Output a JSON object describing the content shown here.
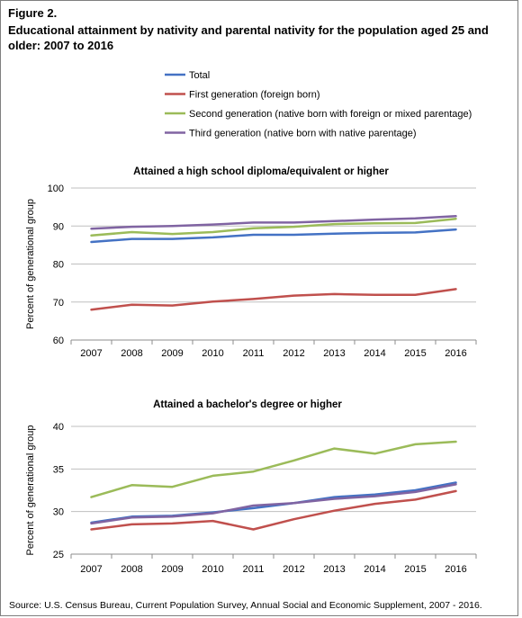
{
  "figure": {
    "label": "Figure 2.",
    "title": "Educational attainment by nativity and parental nativity for the population aged 25 and older: 2007 to 2016",
    "source": "Source: U.S. Census Bureau, Current Population Survey, Annual Social and Economic Supplement, 2007 - 2016."
  },
  "legend": [
    {
      "name": "Total",
      "color": "#4472c4"
    },
    {
      "name": "First generation (foreign born)",
      "color": "#c0504d"
    },
    {
      "name": "Second generation (native born with foreign or mixed parentage)",
      "color": "#9bbb59"
    },
    {
      "name": "Third generation (native born with native parentage)",
      "color": "#8064a2"
    }
  ],
  "chart_data": [
    {
      "type": "line",
      "title": "Attained a high school diploma/equivalent or higher",
      "ylabel": "Percent of generational group",
      "xlabel": "",
      "x": [
        "2007",
        "2008",
        "2009",
        "2010",
        "2011",
        "2012",
        "2013",
        "2014",
        "2015",
        "2016"
      ],
      "ylim": [
        60,
        100
      ],
      "yticks": [
        60,
        70,
        80,
        90,
        100
      ],
      "grid": true,
      "series": [
        {
          "name": "Total",
          "color": "#4472c4",
          "values": [
            85.8,
            86.6,
            86.6,
            87.0,
            87.7,
            87.7,
            88.0,
            88.2,
            88.3,
            89.1
          ]
        },
        {
          "name": "First generation (foreign born)",
          "color": "#c0504d",
          "values": [
            68.0,
            69.3,
            69.1,
            70.1,
            70.8,
            71.7,
            72.1,
            71.9,
            71.9,
            73.4
          ]
        },
        {
          "name": "Second generation (native born with foreign or mixed parentage)",
          "color": "#9bbb59",
          "values": [
            87.5,
            88.4,
            87.9,
            88.4,
            89.4,
            89.8,
            90.5,
            90.7,
            90.8,
            91.9
          ]
        },
        {
          "name": "Third generation (native born with native parentage)",
          "color": "#8064a2",
          "values": [
            89.3,
            89.8,
            90.0,
            90.4,
            90.9,
            90.9,
            91.3,
            91.7,
            92.0,
            92.6
          ]
        }
      ]
    },
    {
      "type": "line",
      "title": "Attained a bachelor's degree or higher",
      "ylabel": "Percent of generational group",
      "xlabel": "",
      "x": [
        "2007",
        "2008",
        "2009",
        "2010",
        "2011",
        "2012",
        "2013",
        "2014",
        "2015",
        "2016"
      ],
      "ylim": [
        25,
        40
      ],
      "yticks": [
        25,
        30,
        35,
        40
      ],
      "grid": true,
      "series": [
        {
          "name": "Total",
          "color": "#4472c4",
          "values": [
            28.7,
            29.4,
            29.5,
            29.9,
            30.4,
            31.0,
            31.7,
            32.0,
            32.5,
            33.4
          ]
        },
        {
          "name": "First generation (foreign born)",
          "color": "#c0504d",
          "values": [
            27.9,
            28.5,
            28.6,
            28.9,
            27.9,
            29.1,
            30.1,
            30.9,
            31.4,
            32.4
          ]
        },
        {
          "name": "Second generation (native born with foreign or mixed parentage)",
          "color": "#9bbb59",
          "values": [
            31.7,
            33.1,
            32.9,
            34.2,
            34.7,
            36.0,
            37.4,
            36.8,
            37.9,
            38.2
          ]
        },
        {
          "name": "Third generation (native born with native parentage)",
          "color": "#8064a2",
          "values": [
            28.6,
            29.3,
            29.4,
            29.8,
            30.7,
            31.0,
            31.5,
            31.8,
            32.3,
            33.2
          ]
        }
      ]
    }
  ]
}
